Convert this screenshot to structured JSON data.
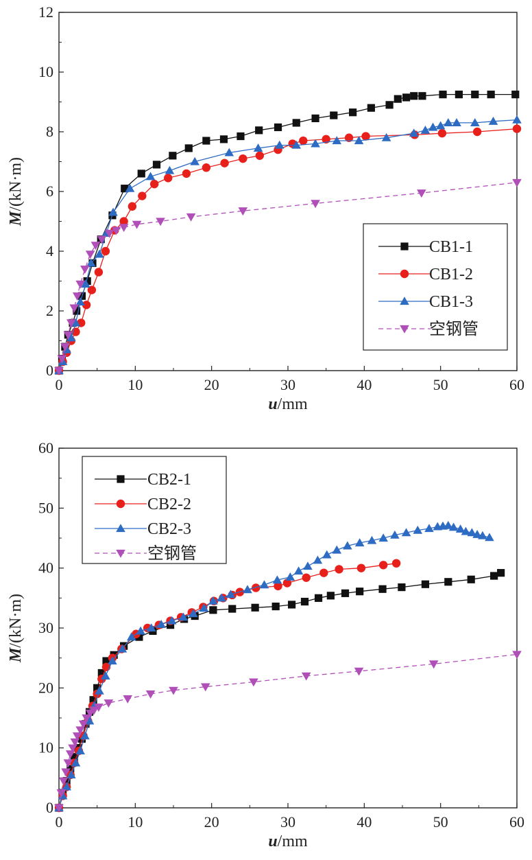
{
  "chart_data": [
    {
      "type": "line",
      "xlabel": "u/mm",
      "ylabel": "M/(kN·m)",
      "xlim": [
        0,
        60
      ],
      "ylim": [
        0,
        12
      ],
      "xticks": [
        0,
        10,
        20,
        30,
        40,
        50,
        60
      ],
      "yticks": [
        0,
        2,
        4,
        6,
        8,
        10,
        12
      ],
      "grid": false,
      "legend_position": "bottom-right",
      "series": [
        {
          "name": "CB1-1",
          "color": "#111111",
          "marker": "square",
          "line_style": "solid",
          "x": [
            0,
            0.4,
            0.8,
            1.2,
            1.8,
            2.3,
            3.0,
            3.7,
            4.4,
            5.5,
            7.0,
            8.6,
            10.8,
            12.8,
            14.9,
            17.0,
            19.3,
            21.6,
            23.8,
            26.2,
            28.7,
            31.1,
            33.6,
            36.0,
            38.5,
            40.9,
            43.3,
            44.4,
            45.5,
            46.5,
            47.6,
            50.3,
            52.4,
            54.5,
            56.6,
            59.8
          ],
          "y": [
            0,
            0.4,
            0.8,
            1.2,
            1.6,
            2.0,
            2.5,
            3.0,
            3.6,
            4.4,
            5.2,
            6.1,
            6.6,
            6.9,
            7.2,
            7.45,
            7.7,
            7.75,
            7.85,
            8.05,
            8.15,
            8.3,
            8.45,
            8.55,
            8.65,
            8.8,
            8.9,
            9.1,
            9.15,
            9.2,
            9.2,
            9.25,
            9.25,
            9.25,
            9.25,
            9.25
          ]
        },
        {
          "name": "CB1-2",
          "color": "#e8201c",
          "marker": "circle",
          "line_style": "solid",
          "x": [
            0,
            0.5,
            1.0,
            1.6,
            2.2,
            2.9,
            3.6,
            4.3,
            5.2,
            6.1,
            7.3,
            8.5,
            9.6,
            10.9,
            12.5,
            14.3,
            16.7,
            19.3,
            21.7,
            24.1,
            26.3,
            28.7,
            30.6,
            32.0,
            35.0,
            38.0,
            40.2,
            46.6,
            50.2,
            54.8,
            60.0
          ],
          "y": [
            0,
            0.3,
            0.6,
            1.0,
            1.3,
            1.6,
            2.2,
            2.7,
            3.3,
            4.0,
            4.7,
            5.0,
            5.5,
            5.85,
            6.25,
            6.45,
            6.6,
            6.8,
            6.95,
            7.1,
            7.2,
            7.4,
            7.6,
            7.7,
            7.75,
            7.8,
            7.85,
            7.9,
            7.95,
            8.0,
            8.1
          ]
        },
        {
          "name": "CB1-3",
          "color": "#2e6cc4",
          "marker": "triangle-up",
          "line_style": "solid",
          "x": [
            0,
            0.5,
            1.0,
            1.6,
            2.2,
            2.8,
            3.5,
            4.2,
            5.3,
            6.2,
            7.1,
            9.3,
            12.0,
            14.5,
            17.8,
            22.3,
            26.1,
            28.9,
            31.1,
            33.6,
            36.4,
            39.3,
            42.9,
            46.5,
            48.0,
            49.0,
            50.0,
            51.0,
            52.1,
            54.5,
            56.9,
            60.0
          ],
          "y": [
            0,
            0.3,
            0.7,
            1.1,
            1.6,
            2.3,
            2.9,
            3.6,
            3.9,
            4.6,
            5.3,
            6.1,
            6.5,
            6.7,
            7.0,
            7.3,
            7.45,
            7.55,
            7.55,
            7.6,
            7.7,
            7.7,
            7.8,
            7.95,
            8.05,
            8.15,
            8.2,
            8.3,
            8.3,
            8.3,
            8.35,
            8.4
          ]
        },
        {
          "name": "空钢管",
          "color": "#b04fb8",
          "marker": "triangle-down",
          "line_style": "dashed",
          "x": [
            0,
            0.4,
            0.8,
            1.2,
            1.6,
            2.0,
            2.4,
            2.8,
            3.4,
            4.1,
            4.8,
            5.6,
            6.6,
            7.5,
            8.5,
            10.2,
            13.3,
            17.3,
            24.1,
            33.6,
            47.5,
            60.0
          ],
          "y": [
            0,
            0.4,
            0.8,
            1.2,
            1.6,
            2.1,
            2.5,
            2.9,
            3.4,
            3.9,
            4.2,
            4.4,
            4.6,
            4.7,
            4.8,
            4.9,
            5.0,
            5.15,
            5.35,
            5.6,
            5.95,
            6.3
          ]
        }
      ]
    },
    {
      "type": "line",
      "xlabel": "u/mm",
      "ylabel": "M/(kN·m)",
      "xlim": [
        0,
        60
      ],
      "ylim": [
        0,
        60
      ],
      "xticks": [
        0,
        10,
        20,
        30,
        40,
        50,
        60
      ],
      "yticks": [
        0,
        10,
        20,
        30,
        40,
        50,
        60
      ],
      "grid": false,
      "legend_position": "top-left",
      "series": [
        {
          "name": "CB2-1",
          "color": "#111111",
          "marker": "square",
          "line_style": "solid",
          "x": [
            0,
            0.5,
            1.0,
            1.5,
            2.0,
            2.5,
            3.0,
            3.5,
            4.0,
            4.5,
            5.0,
            5.6,
            6.2,
            7.2,
            8.5,
            10.5,
            12.3,
            14.6,
            16.4,
            17.8,
            20.2,
            22.7,
            25.7,
            28.4,
            30.5,
            32.2,
            34.0,
            35.6,
            37.5,
            39.4,
            42.4,
            44.9,
            48.0,
            51.0,
            54.0,
            57.0,
            57.9
          ],
          "y": [
            0,
            2.5,
            4.5,
            6.5,
            8.5,
            10.0,
            11.5,
            14.0,
            16.0,
            18.0,
            20.0,
            22.5,
            24.5,
            25.5,
            27.0,
            28.5,
            29.5,
            30.5,
            31.5,
            32.0,
            33.0,
            33.2,
            33.4,
            33.6,
            33.9,
            34.4,
            35.0,
            35.4,
            35.8,
            36.1,
            36.5,
            36.8,
            37.3,
            37.7,
            38.1,
            38.7,
            39.2
          ]
        },
        {
          "name": "CB2-2",
          "color": "#e8201c",
          "marker": "circle",
          "line_style": "solid",
          "x": [
            0,
            0.5,
            1.0,
            1.5,
            2.0,
            2.6,
            3.2,
            3.8,
            4.4,
            5.0,
            5.6,
            6.2,
            7.0,
            8.2,
            10.1,
            11.6,
            13.1,
            14.6,
            16.0,
            17.4,
            18.9,
            20.3,
            21.5,
            22.7,
            23.7,
            25.8,
            28.7,
            29.9,
            32.4,
            34.7,
            36.7,
            39.6,
            42.5,
            44.2
          ],
          "y": [
            0,
            2.0,
            3.5,
            5.5,
            7.5,
            9.5,
            12.0,
            14.5,
            17.0,
            19.0,
            21.5,
            23.5,
            25.0,
            26.5,
            29.0,
            30.0,
            30.5,
            31.2,
            31.8,
            32.6,
            33.5,
            34.5,
            35.0,
            35.5,
            36.0,
            36.7,
            37.0,
            37.5,
            38.4,
            39.2,
            39.8,
            40.0,
            40.5,
            40.8
          ]
        },
        {
          "name": "CB2-3",
          "color": "#2e6cc4",
          "marker": "triangle-up",
          "line_style": "solid",
          "x": [
            0,
            0.5,
            1.0,
            1.6,
            2.2,
            2.8,
            3.4,
            4.0,
            4.6,
            5.3,
            6.1,
            7.0,
            8.3,
            9.5,
            10.7,
            12.1,
            13.4,
            14.8,
            16.3,
            17.6,
            19.0,
            20.2,
            21.3,
            22.5,
            24.7,
            26.9,
            28.6,
            30.3,
            31.4,
            32.6,
            33.9,
            35.1,
            36.4,
            37.8,
            39.4,
            41.0,
            42.5,
            44.0,
            45.5,
            47.0,
            48.5,
            49.6,
            50.3,
            51.0,
            51.7,
            52.6,
            53.3,
            54.1,
            54.8,
            55.5,
            56.4
          ],
          "y": [
            0,
            2.0,
            3.5,
            5.5,
            7.5,
            9.5,
            12.0,
            14.5,
            17.0,
            19.5,
            22.0,
            24.5,
            26.5,
            28.5,
            29.5,
            30.0,
            30.6,
            31.2,
            31.8,
            32.4,
            33.3,
            34.5,
            35.0,
            35.6,
            36.4,
            37.2,
            38.0,
            38.5,
            39.5,
            40.3,
            41.3,
            42.2,
            43.0,
            43.7,
            44.2,
            44.6,
            45.0,
            45.5,
            45.9,
            46.3,
            46.6,
            46.9,
            47.0,
            47.1,
            46.8,
            46.5,
            46.1,
            45.9,
            45.6,
            45.4,
            45.1
          ]
        },
        {
          "name": "空钢管",
          "color": "#b04fb8",
          "marker": "triangle-down",
          "line_style": "dashed",
          "x": [
            0,
            0.3,
            0.6,
            0.9,
            1.2,
            1.5,
            1.8,
            2.1,
            2.4,
            2.8,
            3.2,
            3.6,
            4.1,
            4.6,
            5.2,
            6.5,
            9.0,
            12.0,
            15.0,
            19.2,
            25.5,
            32.4,
            39.3,
            49.1,
            60.0
          ],
          "y": [
            0,
            2.5,
            4.5,
            6.0,
            7.5,
            9.0,
            10.0,
            11.0,
            12.0,
            13.0,
            14.0,
            15.0,
            15.8,
            16.3,
            16.8,
            17.5,
            18.2,
            19.0,
            19.6,
            20.2,
            21.0,
            22.0,
            22.8,
            24.0,
            25.6
          ]
        }
      ]
    }
  ]
}
